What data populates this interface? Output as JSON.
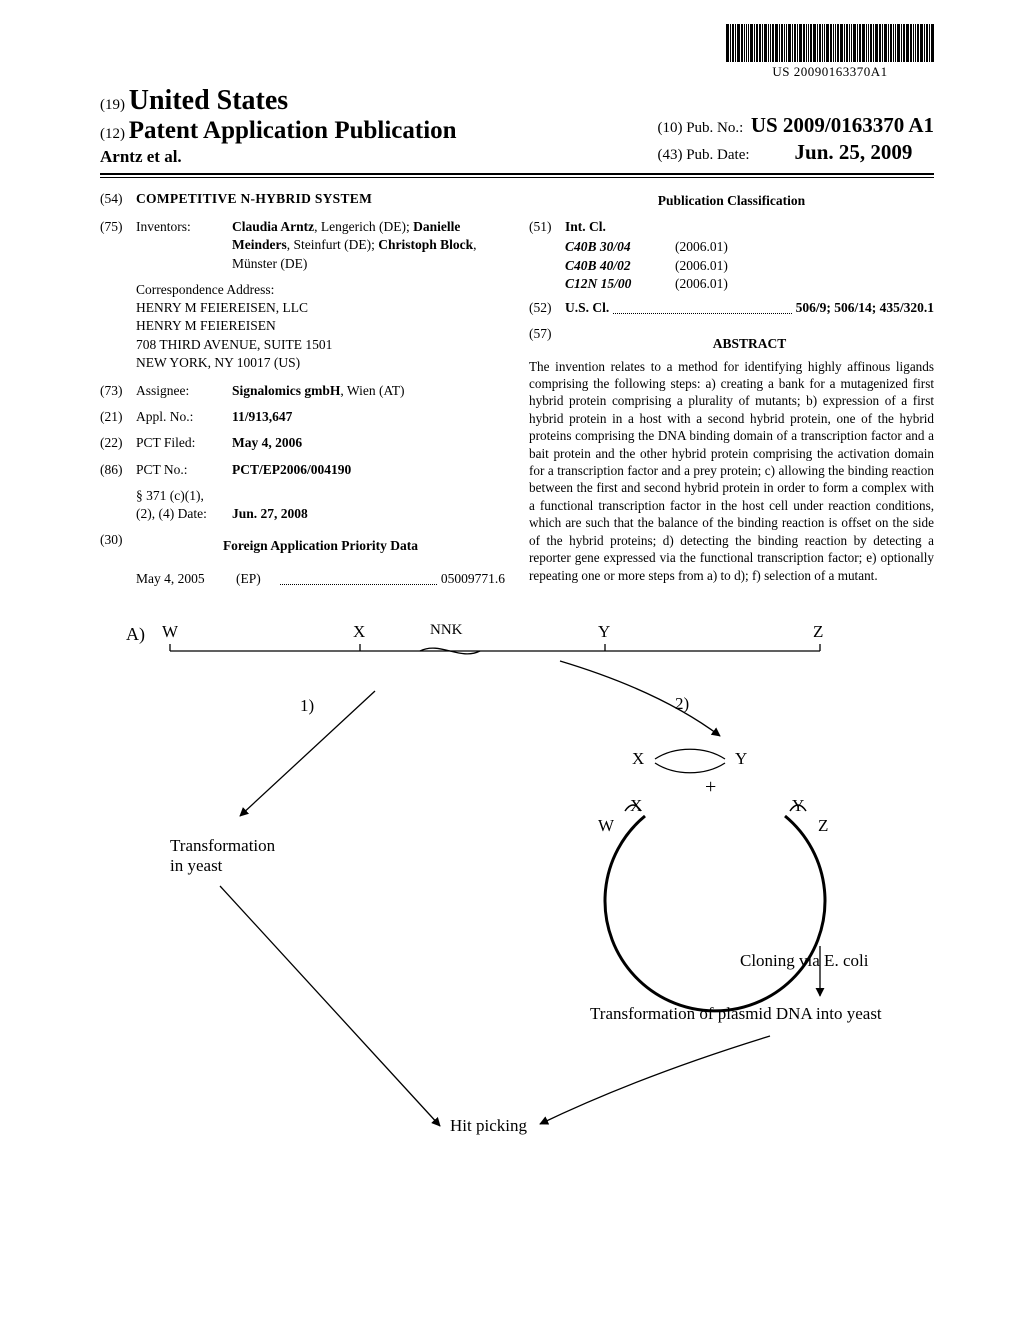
{
  "barcode_text": "US 20090163370A1",
  "header": {
    "country_code": "(19)",
    "country": "United States",
    "doc_type_code": "(12)",
    "doc_type": "Patent Application Publication",
    "authors": "Arntz et al.",
    "pubno_code": "(10)",
    "pubno_label": "Pub. No.:",
    "pubno_value": "US 2009/0163370 A1",
    "pubdate_code": "(43)",
    "pubdate_label": "Pub. Date:",
    "pubdate_value": "Jun. 25, 2009"
  },
  "left": {
    "title_code": "(54)",
    "title": "COMPETITIVE N-HYBRID SYSTEM",
    "inventors_code": "(75)",
    "inventors_label": "Inventors:",
    "inventors_value_html": "Claudia Arntz|, Lengerich (DE); |Danielle Meinders|, Steinfurt (DE); |Christoph Block|, Münster (DE)",
    "corr_label": "Correspondence Address:",
    "corr_line1": "HENRY M FEIEREISEN, LLC",
    "corr_line2": "HENRY M FEIEREISEN",
    "corr_line3": "708 THIRD AVENUE, SUITE 1501",
    "corr_line4": "NEW YORK, NY 10017 (US)",
    "assignee_code": "(73)",
    "assignee_label": "Assignee:",
    "assignee_value_bold": "Signalomics gmbH",
    "assignee_value_rest": ", Wien (AT)",
    "applno_code": "(21)",
    "applno_label": "Appl. No.:",
    "applno_value": "11/913,647",
    "pctfiled_code": "(22)",
    "pctfiled_label": "PCT Filed:",
    "pctfiled_value": "May 4, 2006",
    "pctno_code": "(86)",
    "pctno_label": "PCT No.:",
    "pctno_value": "PCT/EP2006/004190",
    "s371_label1": "§ 371 (c)(1),",
    "s371_label2": "(2), (4) Date:",
    "s371_value": "Jun. 27, 2008",
    "foreign_code": "(30)",
    "foreign_heading": "Foreign Application Priority Data",
    "foreign_date": "May 4, 2005",
    "foreign_country": "(EP)",
    "foreign_number": "05009771.6"
  },
  "right": {
    "pubclass_heading": "Publication Classification",
    "intcl_code": "(51)",
    "intcl_label": "Int. Cl.",
    "intcl_rows": [
      {
        "cls": "C40B 30/04",
        "yr": "(2006.01)"
      },
      {
        "cls": "C40B 40/02",
        "yr": "(2006.01)"
      },
      {
        "cls": "C12N 15/00",
        "yr": "(2006.01)"
      }
    ],
    "uscl_code": "(52)",
    "uscl_label": "U.S. Cl.",
    "uscl_value": "506/9; 506/14; 435/320.1",
    "abstract_code": "(57)",
    "abstract_label": "ABSTRACT",
    "abstract_text": "The invention relates to a method for identifying highly affinous ligands comprising the following steps: a) creating a bank for a mutagenized first hybrid protein comprising a plurality of mutants; b) expression of a first hybrid protein in a host with a second hybrid protein, one of the hybrid proteins comprising the DNA binding domain of a transcription factor and a bait protein and the other hybrid protein comprising the activation domain for a transcription factor and a prey protein; c) allowing the binding reaction between the first and second hybrid protein in order to form a complex with a functional transcription factor in the host cell under reaction conditions, which are such that the balance of the binding reaction is offset on the side of the hybrid proteins; d) detecting the binding reaction by detecting a reporter gene expressed via the functional transcription factor; e) optionally repeating one or more steps from a) to d); f) selection of a mutant."
  },
  "figure": {
    "A": "A)",
    "W": "W",
    "X": "X",
    "Y": "Y",
    "Z": "Z",
    "NNK": "NNK",
    "one": "1)",
    "two": "2)",
    "plus": "+",
    "transform_yeast": "Transformation\nin yeast",
    "cloning": "Cloning via E. coli",
    "transform_plasmid": "Transformation of plasmid DNA into yeast",
    "hit_picking": "Hit picking"
  }
}
